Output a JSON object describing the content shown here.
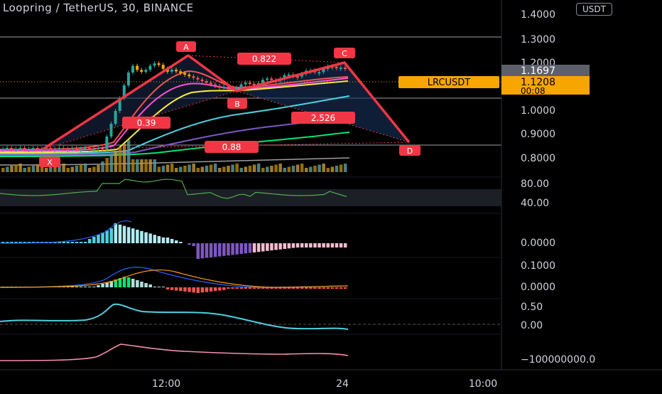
{
  "title": "Loopring / TetherUS, 30, BINANCE",
  "currency_button": "USDT",
  "symbol_label": "LRCUSDT",
  "last_price": "1.1697",
  "current_price": "1.1208",
  "countdown": "00:08",
  "price_axis": [
    "1.4000",
    "1.3000",
    "1.2000",
    "1.0000",
    "0.9000",
    "0.8000"
  ],
  "rsi_axis": [
    "80.00",
    "40.00"
  ],
  "macd_axis": [
    "0.0000"
  ],
  "osc2_axis": [
    "0.1000",
    "0.0000"
  ],
  "osc3_axis": [
    "0.50",
    "0.00"
  ],
  "volume_osc_axis": [
    "−100000000.0"
  ],
  "time_axis": [
    "12:00",
    "24",
    "10:00"
  ],
  "pattern_points": [
    "X",
    "A",
    "B",
    "C",
    "D"
  ],
  "pattern_ratios": [
    "0.822",
    "0.39",
    "2.526",
    "0.88"
  ],
  "colors": {
    "up": "#26a69a",
    "down": "#ef5350",
    "pattern": "#f23645",
    "price_tag": "#f7a600",
    "rsi": "#4caf50",
    "cyan": "#4dd0e1"
  },
  "icons": {
    "price_tag": "price-tag"
  }
}
